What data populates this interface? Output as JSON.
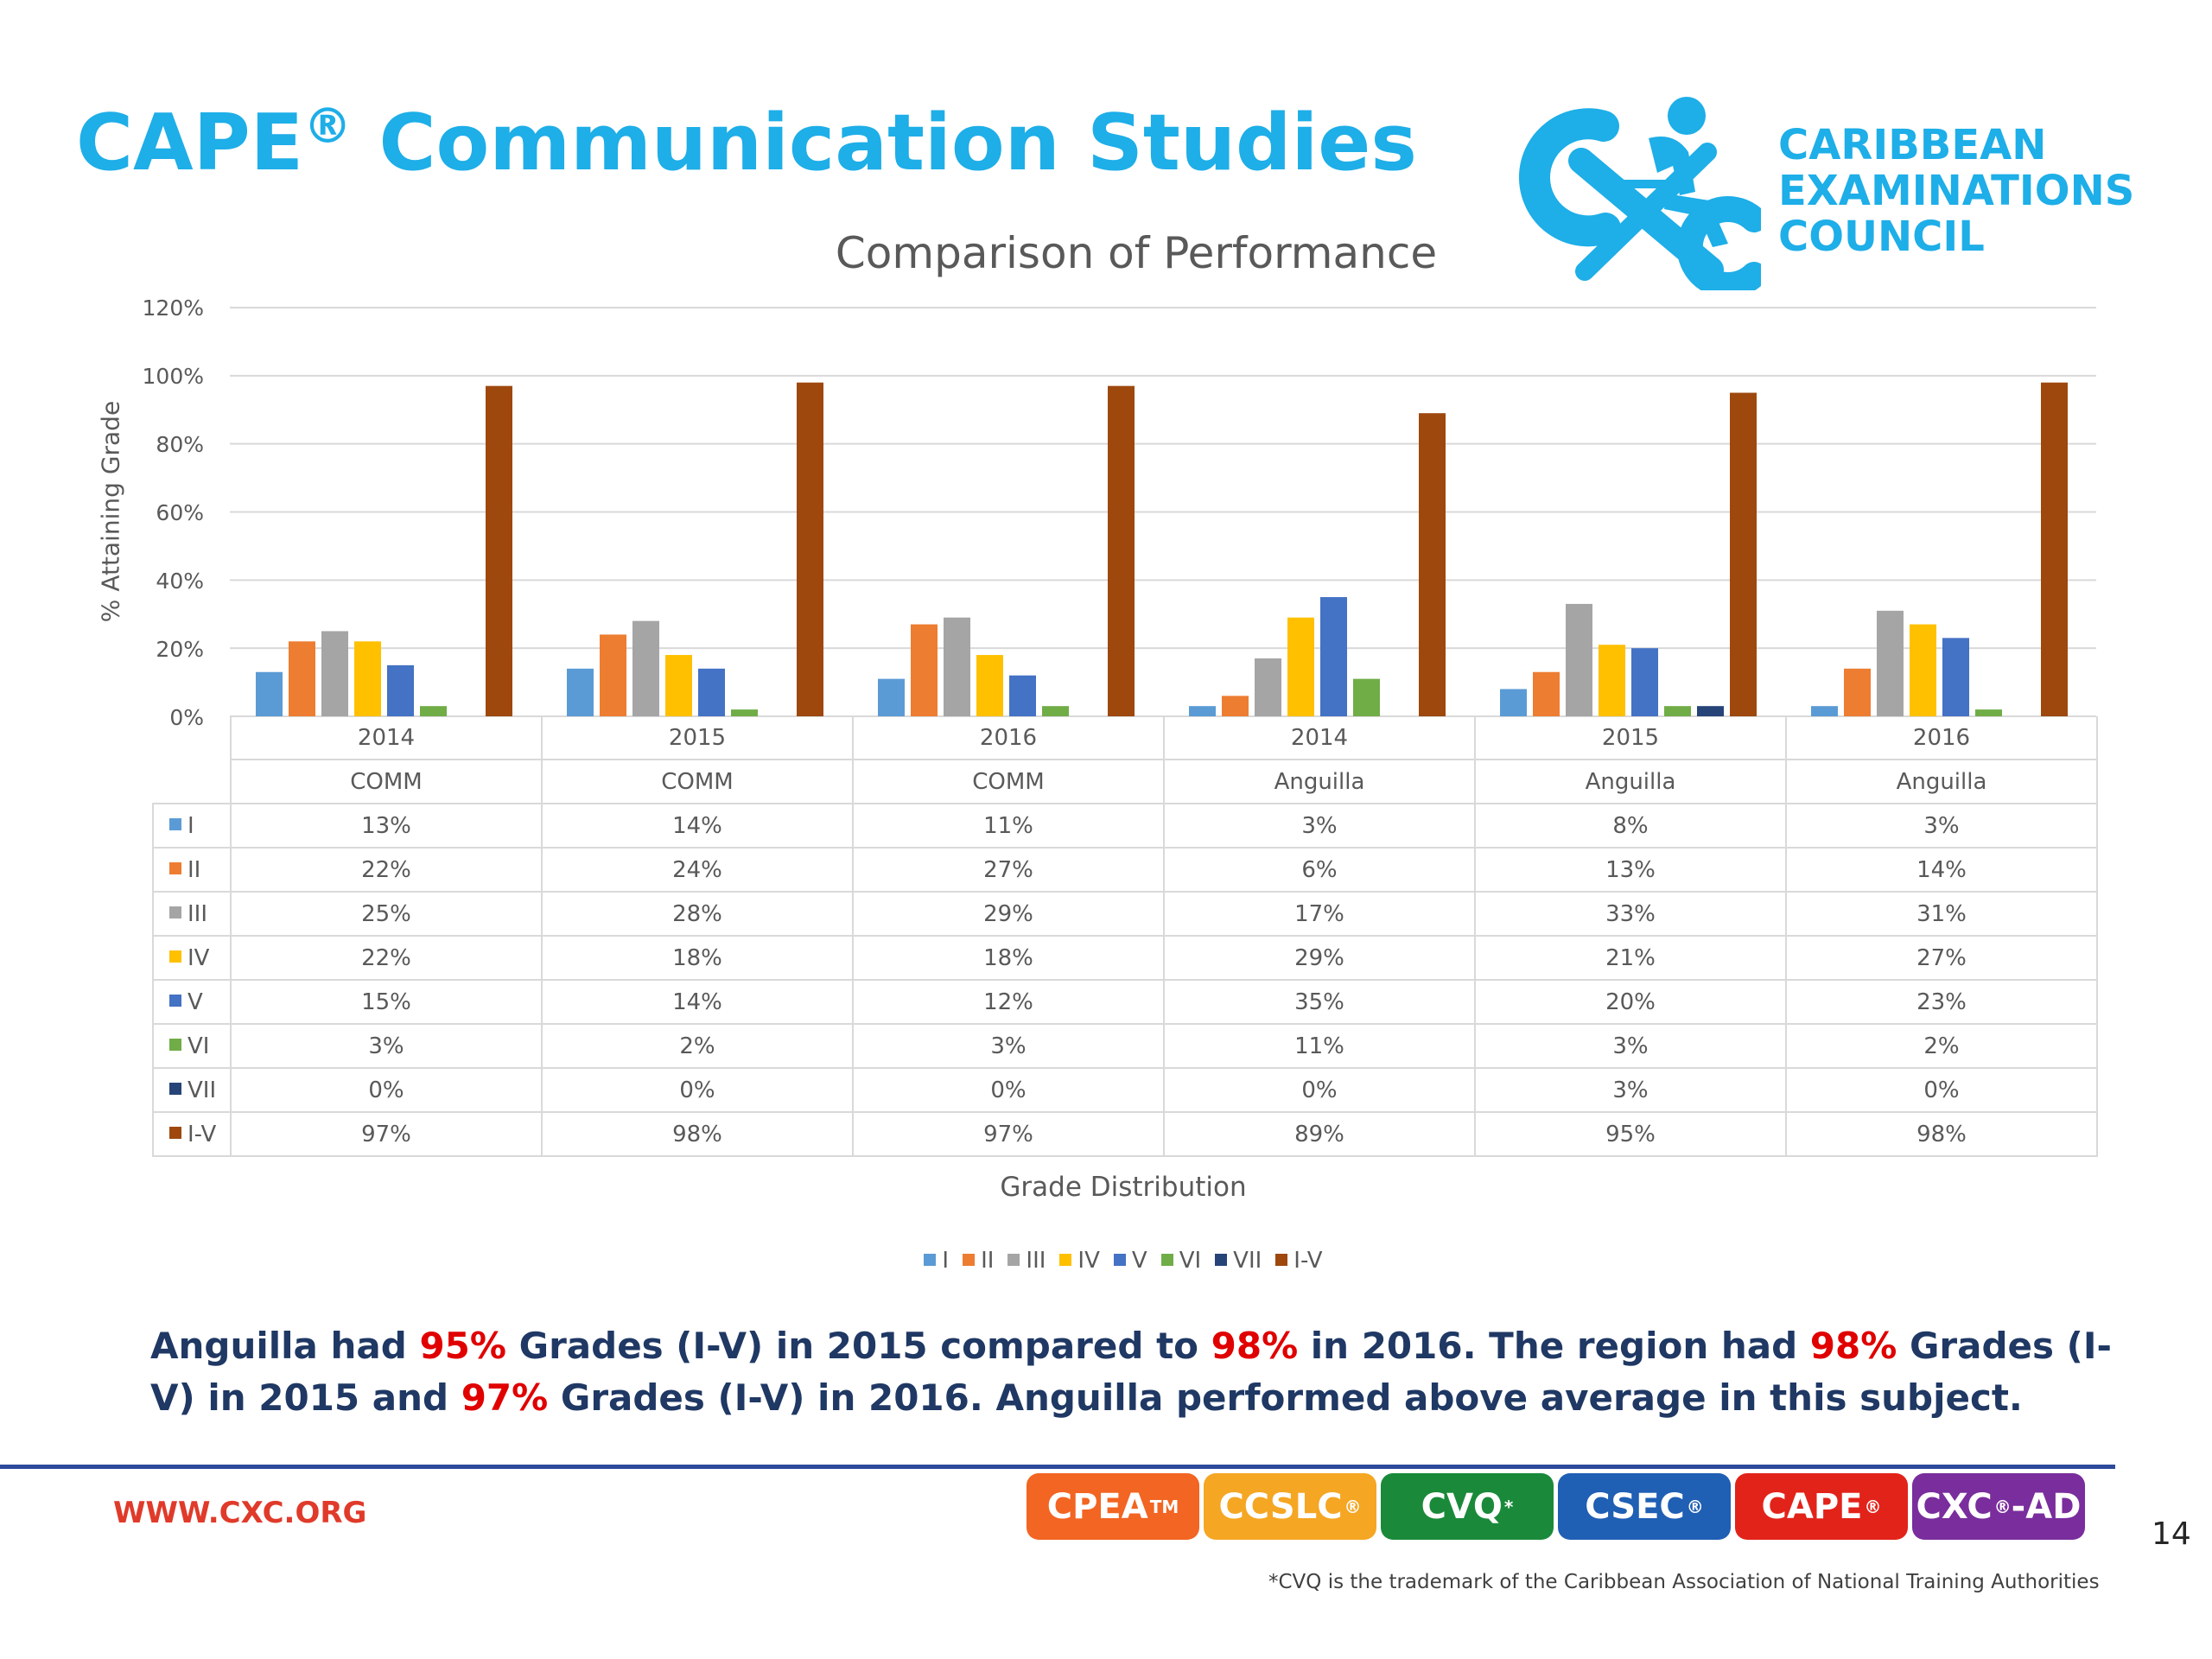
{
  "header": {
    "title_main": "CAPE",
    "title_mark": "®",
    "title_rest": " Communication Studies"
  },
  "logo": {
    "line1": "CARIBBEAN",
    "line2": "EXAMINATIONS",
    "line3": "COUNCIL",
    "color": "#1eaee8"
  },
  "chart_data": {
    "type": "bar",
    "title": "Comparison of Performance",
    "ylabel": "% Attaining Grade",
    "xlabel": "Grade Distribution",
    "ylim": [
      0,
      120
    ],
    "yticks": [
      "0%",
      "20%",
      "40%",
      "60%",
      "80%",
      "100%",
      "120%"
    ],
    "grid": true,
    "legend_position": "bottom",
    "categories": [
      {
        "year": "2014",
        "group": "COMM"
      },
      {
        "year": "2015",
        "group": "COMM"
      },
      {
        "year": "2016",
        "group": "COMM"
      },
      {
        "year": "2014",
        "group": "Anguilla"
      },
      {
        "year": "2015",
        "group": "Anguilla"
      },
      {
        "year": "2016",
        "group": "Anguilla"
      }
    ],
    "series": [
      {
        "name": "I",
        "color": "#5b9bd5",
        "values": [
          13,
          14,
          11,
          3,
          8,
          3
        ],
        "labels": [
          "13%",
          "14%",
          "11%",
          "3%",
          "8%",
          "3%"
        ]
      },
      {
        "name": "II",
        "color": "#ed7d31",
        "values": [
          22,
          24,
          27,
          6,
          13,
          14
        ],
        "labels": [
          "22%",
          "24%",
          "27%",
          "6%",
          "13%",
          "14%"
        ]
      },
      {
        "name": "III",
        "color": "#a5a5a5",
        "values": [
          25,
          28,
          29,
          17,
          33,
          31
        ],
        "labels": [
          "25%",
          "28%",
          "29%",
          "17%",
          "33%",
          "31%"
        ]
      },
      {
        "name": "IV",
        "color": "#ffc000",
        "values": [
          22,
          18,
          18,
          29,
          21,
          27
        ],
        "labels": [
          "22%",
          "18%",
          "18%",
          "29%",
          "21%",
          "27%"
        ]
      },
      {
        "name": "V",
        "color": "#4472c4",
        "values": [
          15,
          14,
          12,
          35,
          20,
          23
        ],
        "labels": [
          "15%",
          "14%",
          "12%",
          "35%",
          "20%",
          "23%"
        ]
      },
      {
        "name": "VI",
        "color": "#70ad47",
        "values": [
          3,
          2,
          3,
          11,
          3,
          2
        ],
        "labels": [
          "3%",
          "2%",
          "3%",
          "11%",
          "3%",
          "2%"
        ]
      },
      {
        "name": "VII",
        "color": "#264478",
        "values": [
          0,
          0,
          0,
          0,
          3,
          0
        ],
        "labels": [
          "0%",
          "0%",
          "0%",
          "0%",
          "3%",
          "0%"
        ]
      },
      {
        "name": "I-V",
        "color": "#9e480e",
        "values": [
          97,
          98,
          97,
          89,
          95,
          98
        ],
        "labels": [
          "97%",
          "98%",
          "97%",
          "89%",
          "95%",
          "98%"
        ]
      }
    ]
  },
  "summary": {
    "p1": "Anguilla had ",
    "r1": "95%",
    "p2": " Grades (I-V) in 2015 compared to ",
    "r2": "98%",
    "p3": " in 2016. The region had ",
    "r3": "98%",
    "p4": " Grades (I-V) in 2015 and ",
    "r4": "97%",
    "p5": " Grades (I-V) in 2016. Anguilla performed above average in this subject.",
    "text_color": "#1f3864",
    "highlight_color": "#e00000"
  },
  "footer": {
    "url": "WWW.CXC.ORG",
    "badges": [
      {
        "label": "CPEA",
        "mark": "TM",
        "color": "#f26522"
      },
      {
        "label": "CCSLC",
        "mark": "®",
        "color": "#f5a623"
      },
      {
        "label": "CVQ",
        "mark": "*",
        "color": "#1a8a3a"
      },
      {
        "label": "CSEC",
        "mark": "®",
        "color": "#1f5fb4"
      },
      {
        "label": "CAPE",
        "mark": "®",
        "color": "#e2231a"
      },
      {
        "label": "CXC",
        "mark": "®",
        "suffix": "-AD",
        "color": "#7a2d9c"
      }
    ],
    "page_number": "14",
    "footnote": "*CVQ is the trademark of the Caribbean Association of National Training Authorities"
  }
}
